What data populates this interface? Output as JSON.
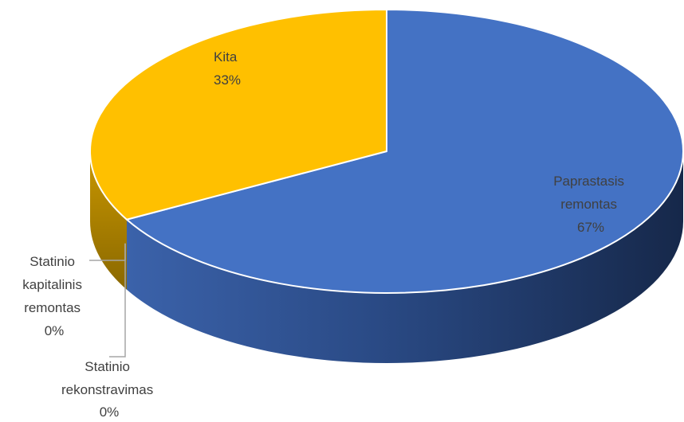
{
  "chart_data": {
    "type": "pie",
    "title": "",
    "style": "3d",
    "slices": [
      {
        "label_lines": [
          "Paprastasis",
          "remontas"
        ],
        "value": 67,
        "value_label": "67%",
        "color": "#4472C4"
      },
      {
        "label_lines": [
          "Statinio",
          "rekonstravimas"
        ],
        "value": 0,
        "value_label": "0%",
        "color": "#ED7D31"
      },
      {
        "label_lines": [
          "Statinio",
          "kapitalinis",
          "remontas"
        ],
        "value": 0,
        "value_label": "0%",
        "color": "#A5A5A5"
      },
      {
        "label_lines": [
          "Kita"
        ],
        "value": 33,
        "value_label": "33%",
        "color": "#FFC000"
      }
    ]
  }
}
